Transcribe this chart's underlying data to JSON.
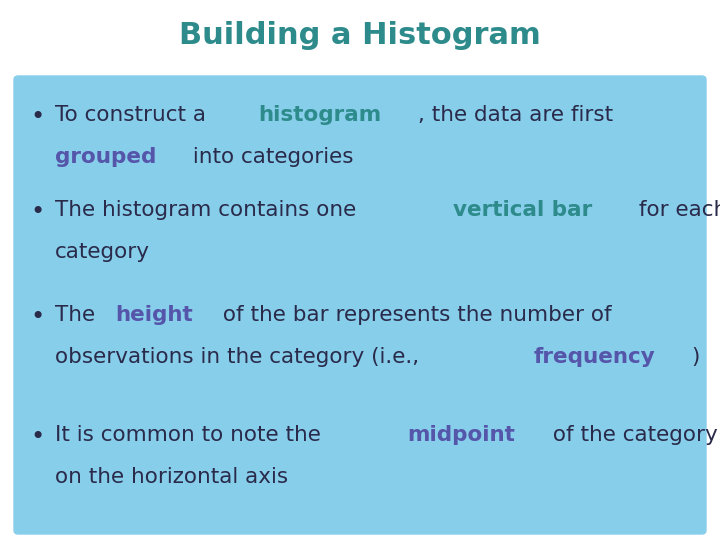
{
  "title": "Building a Histogram",
  "title_color": "#2e8b8b",
  "background_color": "#ffffff",
  "box_color": "#87CEEB",
  "text_color": "#2a2a4a",
  "highlight_teal": "#2e8b8b",
  "highlight_purple": "#5555aa",
  "bullet_points": [
    {
      "lines": [
        [
          {
            "text": "To construct a ",
            "bold": false,
            "color": "#2a2a4a"
          },
          {
            "text": "histogram",
            "bold": true,
            "color": "#2e8b8b"
          },
          {
            "text": ", the data are first",
            "bold": false,
            "color": "#2a2a4a"
          }
        ],
        [
          {
            "text": "grouped",
            "bold": true,
            "color": "#5555aa"
          },
          {
            "text": " into categories",
            "bold": false,
            "color": "#2a2a4a"
          }
        ]
      ]
    },
    {
      "lines": [
        [
          {
            "text": "The histogram contains one ",
            "bold": false,
            "color": "#2a2a4a"
          },
          {
            "text": "vertical bar",
            "bold": true,
            "color": "#2e8b8b"
          },
          {
            "text": " for each",
            "bold": false,
            "color": "#2a2a4a"
          }
        ],
        [
          {
            "text": "category",
            "bold": false,
            "color": "#2a2a4a"
          }
        ]
      ]
    },
    {
      "lines": [
        [
          {
            "text": "The ",
            "bold": false,
            "color": "#2a2a4a"
          },
          {
            "text": "height",
            "bold": true,
            "color": "#5555aa"
          },
          {
            "text": " of the bar represents the number of",
            "bold": false,
            "color": "#2a2a4a"
          }
        ],
        [
          {
            "text": "observations in the category (i.e., ",
            "bold": false,
            "color": "#2a2a4a"
          },
          {
            "text": "frequency",
            "bold": true,
            "color": "#5555aa"
          },
          {
            "text": ")",
            "bold": false,
            "color": "#2a2a4a"
          }
        ]
      ]
    },
    {
      "lines": [
        [
          {
            "text": "It is common to note the ",
            "bold": false,
            "color": "#2a2a4a"
          },
          {
            "text": "midpoint",
            "bold": true,
            "color": "#5555aa"
          },
          {
            "text": " of the category",
            "bold": false,
            "color": "#2a2a4a"
          }
        ],
        [
          {
            "text": "on the horizontal axis",
            "bold": false,
            "color": "#2a2a4a"
          }
        ]
      ]
    }
  ]
}
